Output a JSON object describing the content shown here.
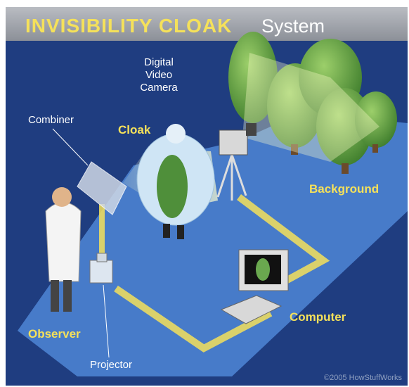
{
  "header": {
    "title": "INVISIBILITY CLOAK",
    "subtitle": "System"
  },
  "labels": {
    "camera": [
      "Digital",
      "Video",
      "Camera"
    ],
    "combiner": "Combiner",
    "cloak": "Cloak",
    "background": "Background",
    "observer": "Observer",
    "projector": "Projector",
    "computer": "Computer"
  },
  "credit": "©2005 HowStuffWorks"
}
